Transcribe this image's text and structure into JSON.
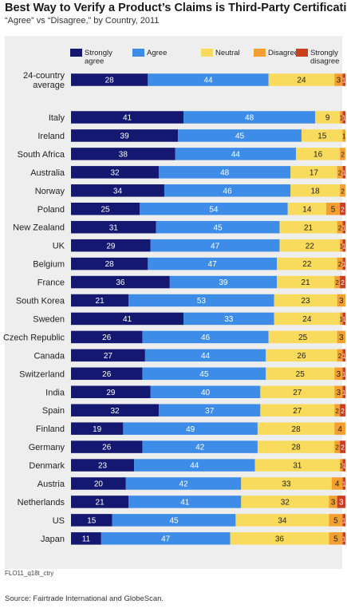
{
  "title": "Best Way to Verify a Product’s Claims is Third-Party Certification",
  "subtitle": "“Agree” vs “Disagree,” by Country, 2011",
  "code_label": "FLO11_q18t_ctry",
  "source": "Source: Fairtrade International and GlobeScan.",
  "colors": {
    "strongly_agree": "#141870",
    "agree": "#3c8ce8",
    "neutral": "#f8db5c",
    "disagree": "#f4a031",
    "strongly_disagree": "#c8401d",
    "panel": "#eeeeee"
  },
  "chart_data": {
    "type": "bar",
    "orientation": "horizontal",
    "stacked": true,
    "xlim": [
      0,
      100
    ],
    "title": "Best Way to Verify a Product’s Claims is Third-Party Certification",
    "subtitle": "“Agree” vs “Disagree,” by Country, 2011",
    "legend_position": "top",
    "categories": [
      "24-country average",
      "Italy",
      "Ireland",
      "South Africa",
      "Australia",
      "Norway",
      "Poland",
      "New Zealand",
      "UK",
      "Belgium",
      "France",
      "South Korea",
      "Sweden",
      "Czech Republic",
      "Canada",
      "Switzerland",
      "India",
      "Spain",
      "Finland",
      "Germany",
      "Denmark",
      "Austria",
      "Netherlands",
      "US",
      "Japan"
    ],
    "series": [
      {
        "name": "Strongly agree",
        "color": "#141870",
        "values": [
          28,
          41,
          39,
          38,
          32,
          34,
          25,
          31,
          29,
          28,
          36,
          21,
          41,
          26,
          27,
          26,
          29,
          32,
          19,
          26,
          23,
          20,
          21,
          15,
          11
        ]
      },
      {
        "name": "Agree",
        "color": "#3c8ce8",
        "values": [
          44,
          48,
          45,
          44,
          48,
          46,
          54,
          45,
          47,
          47,
          39,
          53,
          33,
          46,
          44,
          45,
          40,
          37,
          49,
          42,
          44,
          42,
          41,
          45,
          47
        ]
      },
      {
        "name": "Neutral",
        "color": "#f8db5c",
        "values": [
          24,
          9,
          15,
          16,
          17,
          18,
          14,
          21,
          22,
          22,
          21,
          23,
          24,
          25,
          26,
          25,
          27,
          27,
          28,
          28,
          31,
          33,
          32,
          34,
          36
        ]
      },
      {
        "name": "Disagree",
        "color": "#f4a031",
        "values": [
          3,
          1,
          1,
          2,
          2,
          2,
          5,
          2,
          1,
          2,
          2,
          3,
          1,
          3,
          2,
          3,
          3,
          2,
          4,
          2,
          1,
          4,
          3,
          5,
          5
        ]
      },
      {
        "name": "Strongly disagree",
        "color": "#c8401d",
        "values": [
          1,
          1,
          0,
          0,
          1,
          0,
          2,
          1,
          1,
          1,
          2,
          0,
          1,
          0,
          1,
          1,
          1,
          2,
          0,
          2,
          1,
          1,
          3,
          1,
          1
        ]
      }
    ],
    "data_labels": [
      [
        "28",
        "44",
        "24",
        "3",
        "1"
      ],
      [
        "41",
        "48",
        "9",
        "1",
        "1"
      ],
      [
        "39",
        "45",
        "15",
        "1",
        ""
      ],
      [
        "38",
        "44",
        "16",
        "2",
        ""
      ],
      [
        "32",
        "48",
        "17",
        "2",
        "1"
      ],
      [
        "34",
        "46",
        "18",
        "2",
        ""
      ],
      [
        "25",
        "54",
        "14",
        "5",
        "2"
      ],
      [
        "31",
        "45",
        "21",
        "2",
        "1"
      ],
      [
        "29",
        "47",
        "22",
        "1",
        "1"
      ],
      [
        "28",
        "47",
        "22",
        "2",
        "1"
      ],
      [
        "36",
        "39",
        "21",
        "2",
        "2"
      ],
      [
        "21",
        "53",
        "23",
        "3",
        ""
      ],
      [
        "41",
        "33",
        "24",
        "1",
        "1"
      ],
      [
        "26",
        "46",
        "25",
        "3",
        ""
      ],
      [
        "27",
        "44",
        "26",
        "2",
        "1"
      ],
      [
        "26",
        "45",
        "25",
        "3",
        "1"
      ],
      [
        "29",
        "40",
        "27",
        "3",
        "1"
      ],
      [
        "32",
        "37",
        "27",
        "2",
        "2"
      ],
      [
        "19",
        "49",
        "28",
        "4",
        ""
      ],
      [
        "26",
        "42",
        "28",
        "2",
        "2"
      ],
      [
        "23",
        "44",
        "31",
        "1",
        "1"
      ],
      [
        "20",
        "42",
        "33",
        "4",
        "1"
      ],
      [
        "21",
        "41",
        "32",
        "3",
        "3"
      ],
      [
        "15",
        "45",
        "34",
        "5",
        "1"
      ],
      [
        "11",
        "47",
        "36",
        "5",
        "1"
      ]
    ],
    "legend": [
      "Strongly agree",
      "Agree",
      "Neutral",
      "Disagree",
      "Strongly disagree"
    ]
  }
}
